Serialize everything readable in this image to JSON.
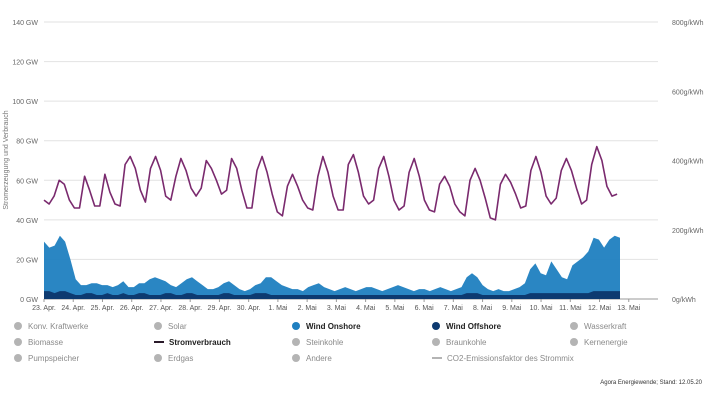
{
  "chart_data": {
    "type": "area",
    "xlabel": "",
    "ylabel": "Stromerzeugung und Verbrauch",
    "y_unit_ticks": [
      "0 GW",
      "20 GW",
      "40 GW",
      "60 GW",
      "80 GW",
      "100 GW",
      "120 GW",
      "140 GW"
    ],
    "ylim": [
      0,
      140
    ],
    "y2_ticks": [
      "0g/kWh",
      "200g/kWh",
      "400g/kWh",
      "600g/kWh",
      "800g/kWh"
    ],
    "y2lim": [
      0,
      800
    ],
    "x_ticks": [
      "23. Apr.",
      "24. Apr.",
      "25. Apr.",
      "26. Apr.",
      "27. Apr.",
      "28. Apr.",
      "29. Apr.",
      "30. Apr.",
      "1. Mai",
      "2. Mai",
      "3. Mai",
      "4. Mai",
      "5. Mai",
      "6. Mai",
      "7. Mai",
      "8. Mai",
      "9. Mai",
      "10. Mai",
      "11. Mai",
      "12. Mai",
      "13. Mai"
    ],
    "grid": true,
    "series": [
      {
        "name": "Stromverbrauch",
        "color": "#7a2a6e",
        "x_start_day": 0,
        "values": [
          50,
          48,
          52,
          60,
          58,
          50,
          46,
          46,
          62,
          55,
          47,
          47,
          63,
          54,
          48,
          47,
          68,
          72,
          66,
          55,
          49,
          66,
          72,
          65,
          52,
          50,
          62,
          71,
          65,
          56,
          52,
          56,
          70,
          66,
          60,
          53,
          55,
          71,
          66,
          55,
          46,
          46,
          65,
          72,
          64,
          53,
          44,
          42,
          57,
          63,
          57,
          50,
          46,
          45,
          62,
          72,
          64,
          52,
          45,
          45,
          68,
          73,
          64,
          52,
          48,
          50,
          66,
          72,
          62,
          50,
          45,
          47,
          64,
          71,
          62,
          50,
          45,
          44,
          58,
          62,
          57,
          48,
          44,
          42,
          60,
          66,
          60,
          51,
          41,
          40,
          58,
          63,
          59,
          53,
          46,
          47,
          65,
          72,
          64,
          52,
          48,
          51,
          65,
          71,
          65,
          56,
          48,
          50,
          68,
          77,
          70,
          57,
          52,
          53
        ]
      },
      {
        "name": "Wind Onshore",
        "color": "#1f7fc0",
        "values": [
          25,
          22,
          24,
          28,
          25,
          17,
          8,
          5,
          4,
          5,
          6,
          5,
          4,
          4,
          5,
          6,
          4,
          4,
          5,
          5,
          8,
          9,
          8,
          6,
          4,
          4,
          6,
          7,
          8,
          7,
          5,
          3,
          3,
          4,
          5,
          6,
          5,
          3,
          2,
          3,
          4,
          5,
          8,
          9,
          7,
          5,
          4,
          3,
          3,
          2,
          4,
          5,
          6,
          4,
          3,
          2,
          3,
          4,
          3,
          2,
          3,
          4,
          4,
          3,
          2,
          3,
          4,
          5,
          4,
          3,
          2,
          3,
          3,
          2,
          3,
          4,
          3,
          2,
          3,
          4,
          8,
          10,
          8,
          5,
          3,
          2,
          3,
          2,
          2,
          3,
          4,
          6,
          12,
          15,
          10,
          9,
          16,
          12,
          8,
          7,
          14,
          16,
          18,
          21,
          27,
          26,
          22,
          26,
          28,
          27
        ]
      },
      {
        "name": "Wind Offshore",
        "color": "#0d3a70",
        "values": [
          4,
          4,
          3,
          4,
          4,
          3,
          2,
          2,
          3,
          3,
          2,
          2,
          3,
          2,
          2,
          3,
          2,
          2,
          3,
          3,
          2,
          2,
          2,
          3,
          3,
          2,
          2,
          3,
          3,
          2,
          2,
          2,
          2,
          2,
          3,
          3,
          2,
          2,
          2,
          2,
          3,
          3,
          3,
          2,
          2,
          2,
          2,
          2,
          2,
          2,
          2,
          2,
          2,
          2,
          2,
          2,
          2,
          2,
          2,
          2,
          2,
          2,
          2,
          2,
          2,
          2,
          2,
          2,
          2,
          2,
          2,
          2,
          2,
          2,
          2,
          2,
          2,
          2,
          2,
          2,
          3,
          3,
          3,
          2,
          2,
          2,
          2,
          2,
          2,
          2,
          2,
          2,
          3,
          3,
          3,
          3,
          3,
          3,
          3,
          3,
          3,
          3,
          3,
          3,
          4,
          4,
          4,
          4,
          4,
          4
        ]
      }
    ],
    "legend": [
      {
        "name": "Konv. Kraftwerke",
        "color": "#b4b4b4",
        "shape": "dot",
        "active": false
      },
      {
        "name": "Solar",
        "color": "#b4b4b4",
        "shape": "dot",
        "active": false
      },
      {
        "name": "Wind Onshore",
        "color": "#1f7fc0",
        "shape": "dot",
        "active": true
      },
      {
        "name": "Wind Offshore",
        "color": "#0d3a70",
        "shape": "dot",
        "active": true
      },
      {
        "name": "Wasserkraft",
        "color": "#b4b4b4",
        "shape": "dot",
        "active": false
      },
      {
        "name": "Biomasse",
        "color": "#b4b4b4",
        "shape": "dot",
        "active": false
      },
      {
        "name": "Stromverbrauch",
        "color": "#2a1a2a",
        "shape": "dash",
        "active": true
      },
      {
        "name": "Steinkohle",
        "color": "#b4b4b4",
        "shape": "dot",
        "active": false
      },
      {
        "name": "Braunkohle",
        "color": "#b4b4b4",
        "shape": "dot",
        "active": false
      },
      {
        "name": "Kernenergie",
        "color": "#b4b4b4",
        "shape": "dot",
        "active": false
      },
      {
        "name": "Pumpspeicher",
        "color": "#b4b4b4",
        "shape": "dot",
        "active": false
      },
      {
        "name": "Erdgas",
        "color": "#b4b4b4",
        "shape": "dot",
        "active": false
      },
      {
        "name": "Andere",
        "color": "#b4b4b4",
        "shape": "dot",
        "active": false
      },
      {
        "name": "CO2-Emissionsfaktor des Strommix",
        "color": "#b4b4b4",
        "shape": "dash",
        "active": false
      }
    ]
  },
  "source_text": "Agora Energiewende; Stand: 12.05.20"
}
